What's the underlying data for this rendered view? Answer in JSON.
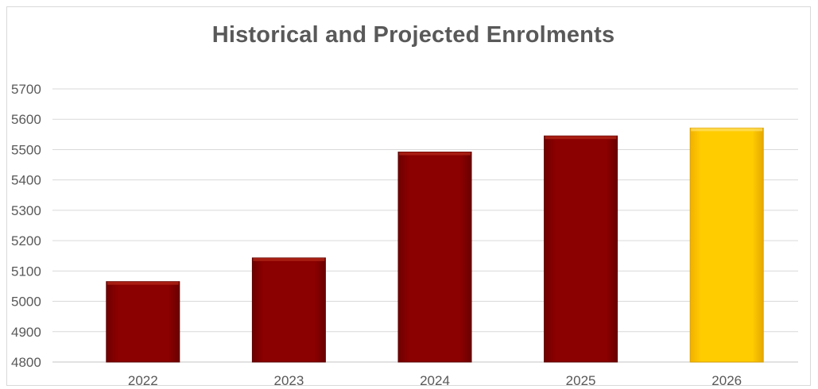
{
  "chart_data": {
    "type": "bar",
    "title": "Historical and Projected Enrolments",
    "xlabel": "",
    "ylabel": "",
    "categories": [
      "2022",
      "2023",
      "2024",
      "2025",
      "2026"
    ],
    "values": [
      5065,
      5143,
      5492,
      5545,
      5571
    ],
    "ylim": [
      4800,
      5700
    ],
    "yticks": [
      4800,
      4900,
      5000,
      5100,
      5200,
      5300,
      5400,
      5500,
      5600,
      5700
    ],
    "grid": true,
    "colors": {
      "historical": "#8b0000",
      "projected": "#ffc000",
      "gridline": "#d9d9d9",
      "text": "#595959"
    },
    "bar_colors": [
      "#8b0000",
      "#8b0000",
      "#8b0000",
      "#8b0000",
      "#ffc000"
    ]
  }
}
